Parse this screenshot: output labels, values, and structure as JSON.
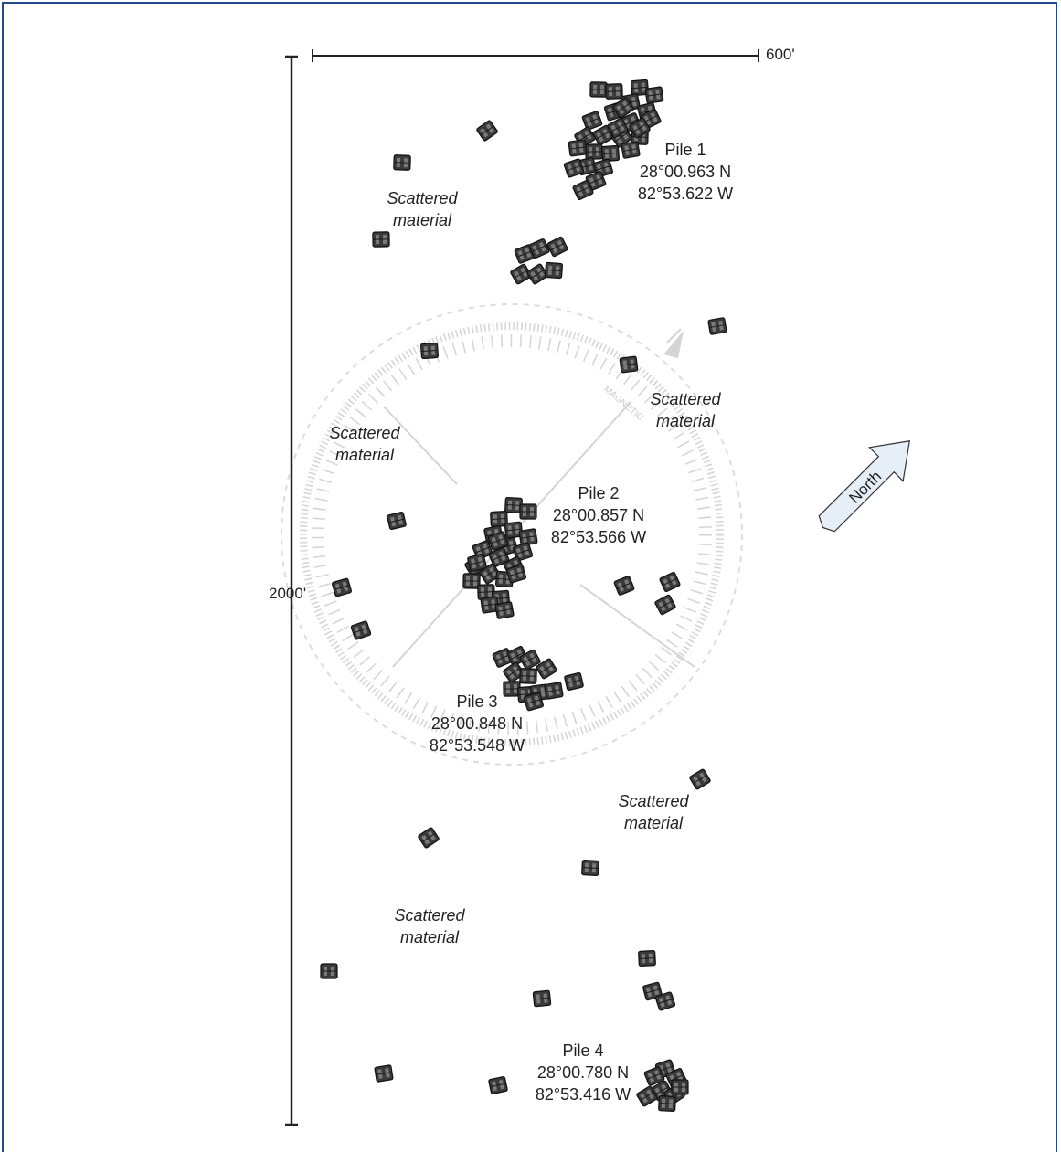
{
  "scale": {
    "horizontal": "600'",
    "vertical": "2000'"
  },
  "north_label": "North",
  "compass_label": "MAGNETIC",
  "piles": [
    {
      "name": "Pile 1",
      "lat": "28°00.963 N",
      "lon": "82°53.622 W"
    },
    {
      "name": "Pile 2",
      "lat": "28°00.857 N",
      "lon": "82°53.566 W"
    },
    {
      "name": "Pile 3",
      "lat": "28°00.848 N",
      "lon": "82°53.548 W"
    },
    {
      "name": "Pile 4",
      "lat": "28°00.780 N",
      "lon": "82°53.416 W"
    }
  ],
  "scattered": [
    {
      "line1": "Scattered",
      "line2": "material"
    },
    {
      "line1": "Scattered",
      "line2": "material"
    },
    {
      "line1": "Scattered",
      "line2": "material"
    },
    {
      "line1": "Scattered",
      "line2": "material"
    },
    {
      "line1": "Scattered",
      "line2": "material"
    }
  ],
  "colors": {
    "frame": "#26488f",
    "unit_fill": "#3a3a3a",
    "compass": "#d4d4d4",
    "north_arrow_fill": "#e6eef8"
  },
  "icon": "reef-unit-icon"
}
